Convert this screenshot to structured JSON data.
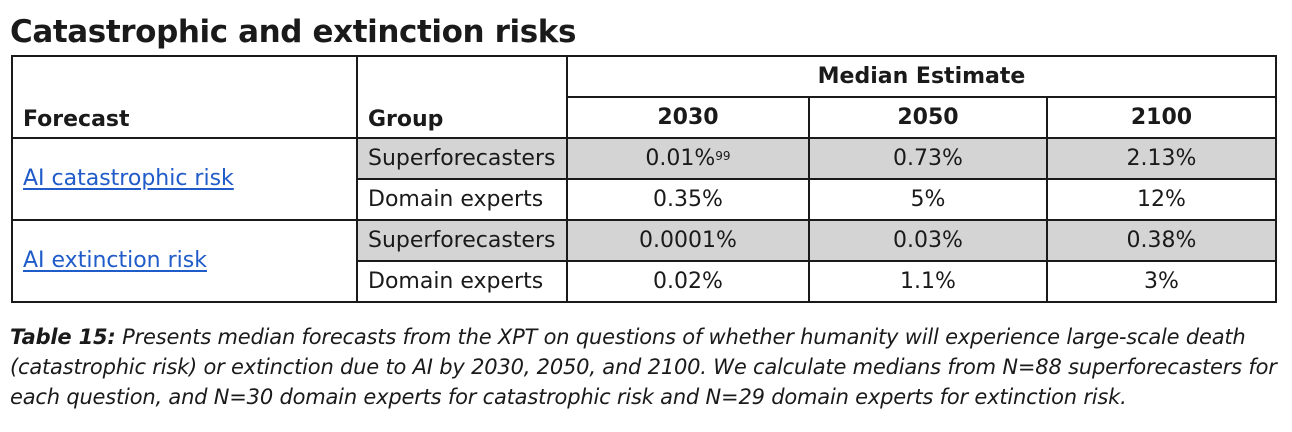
{
  "title": "Catastrophic and extinction risks",
  "table": {
    "header_forecast": "Forecast",
    "header_group": "Group",
    "header_median": "Median Estimate",
    "years": [
      "2030",
      "2050",
      "2100"
    ],
    "forecasts": [
      {
        "label": "AI catastrophic risk",
        "rows": [
          {
            "group": "Superforecasters",
            "v2030": "0.01%",
            "v2030_footnote": "99",
            "v2050": "0.73%",
            "v2100": "2.13%"
          },
          {
            "group": "Domain experts",
            "v2030": "0.35%",
            "v2050": "5%",
            "v2100": "12%"
          }
        ]
      },
      {
        "label": "AI extinction risk",
        "rows": [
          {
            "group": "Superforecasters",
            "v2030": "0.0001%",
            "v2050": "0.03%",
            "v2100": "0.38%"
          },
          {
            "group": "Domain experts",
            "v2030": "0.02%",
            "v2050": "1.1%",
            "v2100": "3%"
          }
        ]
      }
    ]
  },
  "caption": {
    "label": "Table 15:",
    "text": "Presents median forecasts from the XPT on questions of whether humanity will experience large-scale death (catastrophic risk) or extinction due to AI by 2030, 2050, and 2100. We calculate medians from N=88 superforecasters for each question, and N=30 domain experts for catastrophic risk and N=29 domain experts for extinction risk."
  }
}
